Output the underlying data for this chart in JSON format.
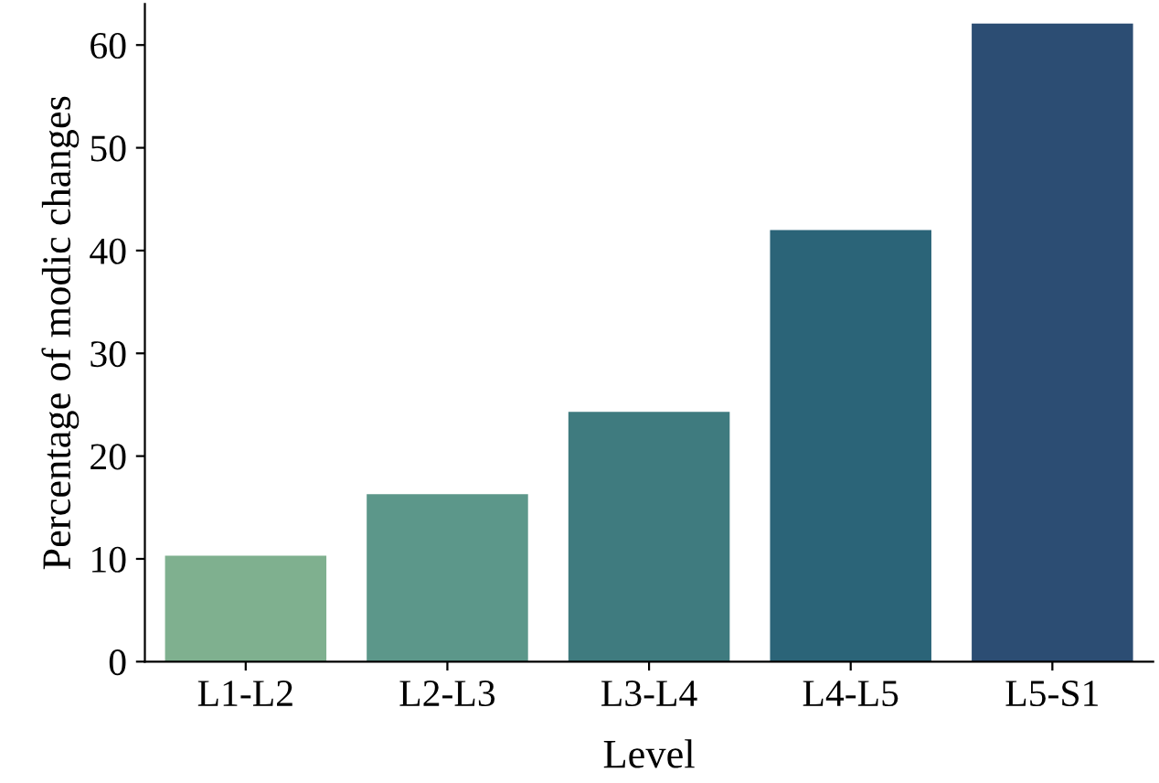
{
  "chart_data": {
    "type": "bar",
    "xlabel": "Level",
    "ylabel": "Percentage of modic changes",
    "categories": [
      "L1-L2",
      "L2-L3",
      "L3-L4",
      "L4-L5",
      "L5-S1"
    ],
    "values": [
      10.3,
      16.3,
      24.3,
      42.0,
      62.1
    ],
    "colors": [
      "#7fb08f",
      "#5c978a",
      "#3f7b7f",
      "#2b6478",
      "#2c4d73"
    ],
    "ylim": [
      0,
      64
    ],
    "yticks": [
      0,
      10,
      20,
      30,
      40,
      50,
      60
    ],
    "grid": false
  }
}
